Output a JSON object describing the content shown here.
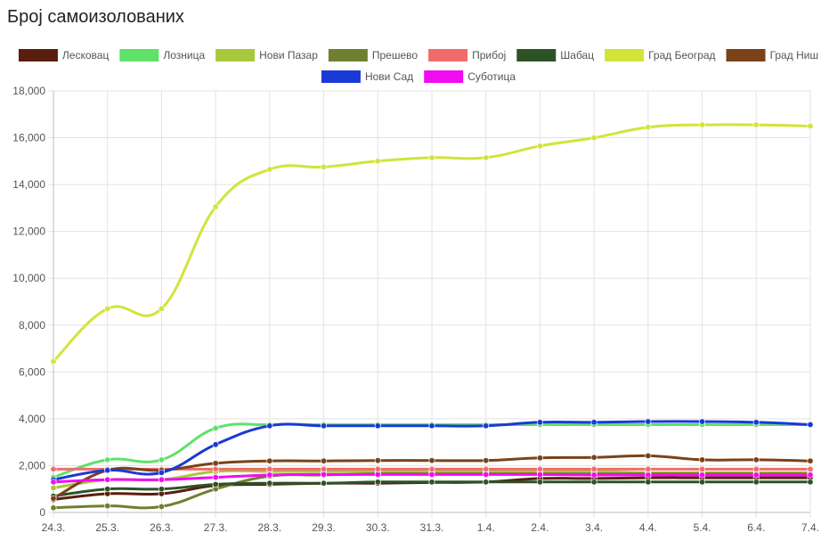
{
  "title": "Број самоизолованих",
  "chart_data": {
    "type": "line",
    "title": "Број самоизолованих",
    "categories": [
      "24.3.",
      "25.3.",
      "26.3.",
      "27.3.",
      "28.3.",
      "29.3.",
      "30.3.",
      "31.3.",
      "1.4.",
      "2.4.",
      "3.4.",
      "4.4.",
      "5.4.",
      "6.4.",
      "7.4."
    ],
    "ylim": [
      0,
      18000
    ],
    "yticks": [
      0,
      2000,
      4000,
      6000,
      8000,
      10000,
      12000,
      14000,
      16000,
      18000
    ],
    "ytick_labels": [
      "0",
      "2,000",
      "4,000",
      "6,000",
      "8,000",
      "10,000",
      "12,000",
      "14,000",
      "16,000",
      "18,000"
    ],
    "grid": true,
    "legend_position": "top",
    "series": [
      {
        "name": "Лесковац",
        "color": "#5a1e0e",
        "values": [
          550,
          800,
          800,
          1150,
          1200,
          1250,
          1250,
          1280,
          1300,
          1450,
          1450,
          1480,
          1480,
          1480,
          1480
        ]
      },
      {
        "name": "Лозница",
        "color": "#5ee26a",
        "values": [
          1500,
          2250,
          2250,
          3600,
          3750,
          3750,
          3750,
          3750,
          3750,
          3750,
          3750,
          3750,
          3750,
          3750,
          3750
        ]
      },
      {
        "name": "Нови Пазар",
        "color": "#a8c83c",
        "values": [
          1050,
          1400,
          1400,
          1750,
          1750,
          1750,
          1750,
          1750,
          1750,
          1750,
          1750,
          1700,
          1700,
          1700,
          1700
        ]
      },
      {
        "name": "Прешево",
        "color": "#708030",
        "values": [
          200,
          280,
          250,
          1000,
          1550,
          1600,
          1650,
          1650,
          1650,
          1650,
          1650,
          1650,
          1650,
          1650,
          1650
        ]
      },
      {
        "name": "Прибој",
        "color": "#f26b6b",
        "values": [
          1850,
          1850,
          1850,
          1850,
          1850,
          1850,
          1850,
          1850,
          1850,
          1850,
          1850,
          1850,
          1850,
          1850,
          1850
        ]
      },
      {
        "name": "Шабац",
        "color": "#2c5226",
        "values": [
          700,
          1000,
          1000,
          1200,
          1250,
          1250,
          1300,
          1300,
          1300,
          1300,
          1300,
          1300,
          1300,
          1300,
          1300
        ]
      },
      {
        "name": "Град Београд",
        "color": "#d2e43a",
        "values": [
          6450,
          8700,
          8700,
          13050,
          14650,
          14750,
          15000,
          15150,
          15150,
          15650,
          16000,
          16450,
          16550,
          16550,
          16500
        ]
      },
      {
        "name": "Град Ниш",
        "color": "#7a4218",
        "values": [
          600,
          1800,
          1800,
          2100,
          2200,
          2200,
          2220,
          2220,
          2220,
          2330,
          2350,
          2420,
          2250,
          2250,
          2200
        ]
      },
      {
        "name": "Нови Сад",
        "color": "#1a3ad6",
        "values": [
          1400,
          1800,
          1700,
          2900,
          3700,
          3700,
          3700,
          3700,
          3700,
          3850,
          3850,
          3880,
          3880,
          3850,
          3750
        ]
      },
      {
        "name": "Суботица",
        "color": "#f20cf0",
        "values": [
          1300,
          1400,
          1400,
          1500,
          1600,
          1620,
          1620,
          1620,
          1620,
          1620,
          1600,
          1600,
          1600,
          1600,
          1600
        ]
      }
    ]
  }
}
